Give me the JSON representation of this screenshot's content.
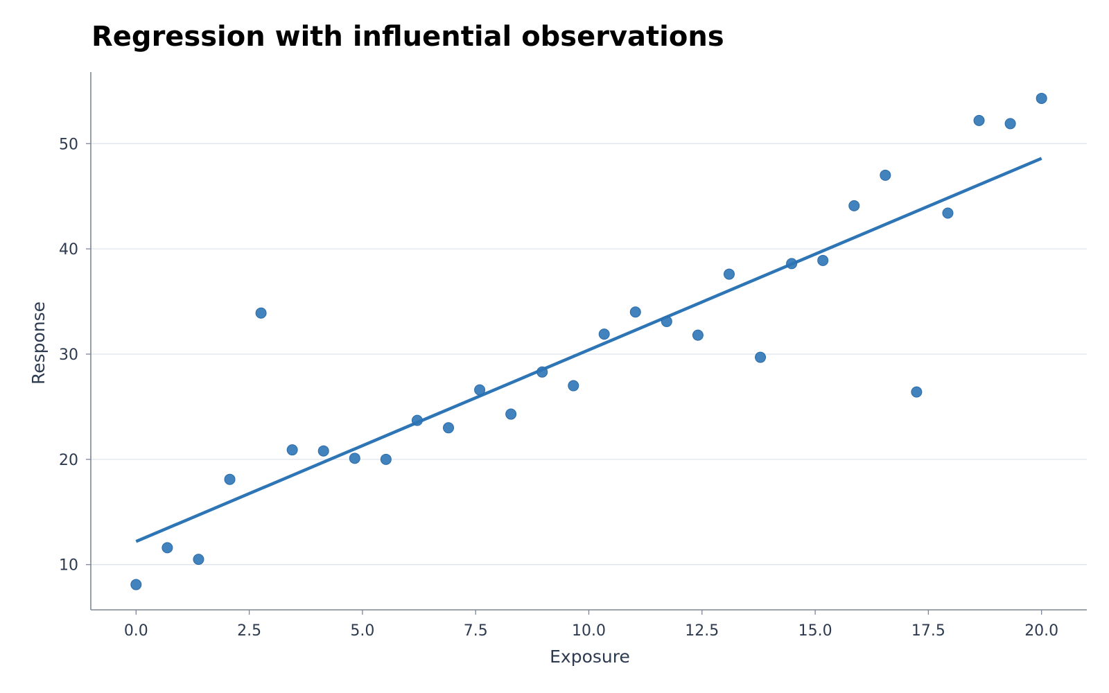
{
  "chart_data": {
    "type": "scatter",
    "title": "Regression with influential observations",
    "xlabel": "Exposure",
    "ylabel": "Response",
    "xlim": [
      -1,
      21
    ],
    "ylim": [
      5.7,
      56.8
    ],
    "xticks": [
      0.0,
      2.5,
      5.0,
      7.5,
      10.0,
      12.5,
      15.0,
      17.5,
      20.0
    ],
    "xtick_labels": [
      "0.0",
      "2.5",
      "5.0",
      "7.5",
      "10.0",
      "12.5",
      "15.0",
      "17.5",
      "20.0"
    ],
    "yticks": [
      10,
      20,
      30,
      40,
      50
    ],
    "ytick_labels": [
      "10",
      "20",
      "30",
      "40",
      "50"
    ],
    "grid": "horizontal",
    "series": [
      {
        "kind": "points",
        "color": "#2e75b6",
        "x": [
          0.0,
          0.69,
          1.38,
          2.07,
          2.76,
          3.45,
          4.14,
          4.83,
          5.52,
          6.21,
          6.9,
          7.59,
          8.28,
          8.97,
          9.66,
          10.34,
          11.03,
          11.72,
          12.41,
          13.1,
          13.79,
          14.48,
          15.17,
          15.86,
          16.55,
          17.24,
          17.93,
          18.62,
          19.31,
          20.0
        ],
        "y": [
          8.1,
          11.6,
          10.5,
          18.1,
          33.9,
          20.9,
          20.8,
          20.1,
          20.0,
          23.7,
          23.0,
          26.6,
          24.3,
          28.3,
          27.0,
          31.9,
          34.0,
          33.1,
          31.8,
          37.6,
          29.7,
          38.6,
          38.9,
          44.1,
          47.0,
          26.4,
          43.4,
          52.2,
          51.9,
          54.3
        ]
      },
      {
        "kind": "fit-line",
        "color": "#2e75b6",
        "x": [
          0.0,
          20.0
        ],
        "y": [
          12.2,
          48.6
        ]
      }
    ]
  }
}
